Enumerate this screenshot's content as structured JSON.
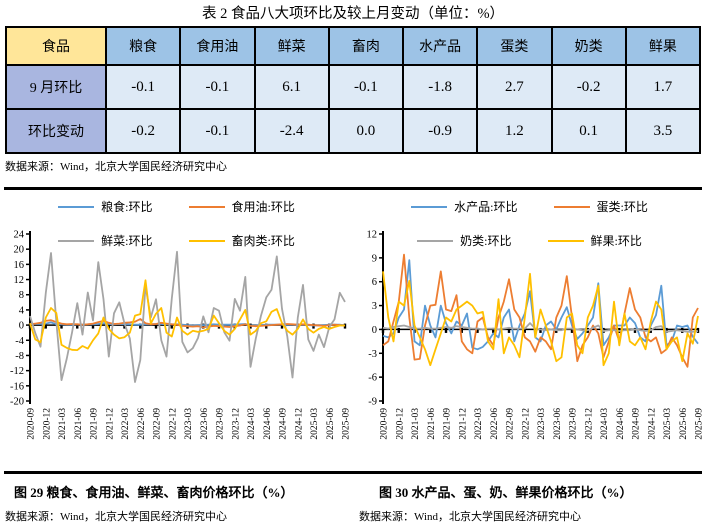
{
  "title": "表 2 食品八大项环比及较上月变动（单位：%）",
  "table": {
    "header": [
      "食品",
      "粮食",
      "食用油",
      "鲜菜",
      "畜肉",
      "水产品",
      "蛋类",
      "奶类",
      "鲜果"
    ],
    "rows": [
      {
        "label": "9 月环比",
        "values": [
          "-0.1",
          "-0.1",
          "6.1",
          "-0.1",
          "-1.8",
          "2.7",
          "-0.2",
          "1.7"
        ]
      },
      {
        "label": "环比变动",
        "values": [
          "-0.2",
          "-0.1",
          "-2.4",
          "0.0",
          "-0.9",
          "1.2",
          "0.1",
          "3.5"
        ]
      }
    ]
  },
  "table_source": "数据来源：Wind，北京大学国民经济研究中心",
  "figures": [
    {
      "caption": "图 29 粮食、食用油、鲜菜、畜肉价格环比（%）",
      "source": "数据来源：Wind，北京大学国民经济研究中心"
    },
    {
      "caption": "图 30 水产品、蛋、奶、鲜果价格环比（%）",
      "source": "数据来源：Wind，北京大学国民经济研究中心"
    }
  ],
  "colors": {
    "blue": "#5B9BD5",
    "orange": "#ED7D31",
    "gray": "#A5A5A5",
    "yellow": "#FFC000",
    "table_header": "#9DC3E6",
    "table_corner": "#FFE699",
    "table_rowlabel": "#A9B6E0",
    "table_cell": "#DEEAF6"
  },
  "chart_data": [
    {
      "type": "line",
      "x": [
        "2020-09",
        "2020-10",
        "2020-11",
        "2020-12",
        "2021-01",
        "2021-02",
        "2021-03",
        "2021-04",
        "2021-05",
        "2021-06",
        "2021-07",
        "2021-08",
        "2021-09",
        "2021-10",
        "2021-11",
        "2021-12",
        "2022-01",
        "2022-02",
        "2022-03",
        "2022-04",
        "2022-05",
        "2022-06",
        "2022-07",
        "2022-08",
        "2022-09",
        "2022-10",
        "2022-11",
        "2022-12",
        "2023-01",
        "2023-02",
        "2023-03",
        "2023-04",
        "2023-05",
        "2023-06",
        "2023-07",
        "2023-08",
        "2023-09",
        "2023-10",
        "2023-11",
        "2023-12",
        "2024-01",
        "2024-02",
        "2024-03",
        "2024-04",
        "2024-05",
        "2024-06",
        "2024-07",
        "2024-08",
        "2024-09",
        "2024-10",
        "2024-11",
        "2024-12",
        "2025-01",
        "2025-02",
        "2025-03",
        "2025-04",
        "2025-05",
        "2025-06",
        "2025-07",
        "2025-08",
        "2025-09"
      ],
      "x_tick_every": 3,
      "ylim": [
        -20,
        24
      ],
      "yticks": [
        24,
        20,
        16,
        12,
        8,
        4,
        0,
        -4,
        -8,
        -12,
        -16,
        -20
      ],
      "legend_position": "top",
      "grid": false,
      "series": [
        {
          "name": "粮食:环比",
          "color": "#5B9BD5",
          "values": [
            0.4,
            0.3,
            0.3,
            0.4,
            0.7,
            0.2,
            0.2,
            0.1,
            0.1,
            0.2,
            0.1,
            0.2,
            0.2,
            0.3,
            0.5,
            0.3,
            0.2,
            0.3,
            0.2,
            0.2,
            0.1,
            0.1,
            0.2,
            0.2,
            0.3,
            0.3,
            0.2,
            0.2,
            0.2,
            0.1,
            0.0,
            -0.1,
            0.0,
            0.0,
            0.1,
            0.2,
            0.1,
            0.1,
            0.1,
            0.1,
            0.2,
            0.3,
            -0.1,
            -0.1,
            0.0,
            0.1,
            0.1,
            0.1,
            0.1,
            0.1,
            0.1,
            0.0,
            0.1,
            0.0,
            -0.1,
            -0.1,
            0.0,
            0.1,
            0.1,
            0.1,
            -0.1
          ]
        },
        {
          "name": "食用油:环比",
          "color": "#ED7D31",
          "values": [
            0.2,
            0.4,
            0.6,
            1.1,
            1.3,
            0.8,
            0.4,
            0.2,
            0.3,
            0.2,
            0.1,
            0.2,
            0.4,
            0.8,
            1.1,
            0.6,
            0.3,
            0.4,
            0.6,
            0.7,
            0.9,
            1.6,
            0.5,
            0.2,
            0.3,
            0.6,
            0.4,
            0.2,
            0.1,
            -0.2,
            -0.3,
            -0.4,
            -0.3,
            -0.6,
            -0.4,
            -0.2,
            -0.3,
            -0.4,
            -0.5,
            -0.3,
            -0.1,
            0.2,
            -0.2,
            -0.3,
            -0.2,
            -0.1,
            0.0,
            0.1,
            0.2,
            0.3,
            0.2,
            0.1,
            0.2,
            0.1,
            0.0,
            -0.1,
            -0.2,
            0.0,
            0.1,
            0.0,
            -0.1
          ]
        },
        {
          "name": "鲜菜:环比",
          "color": "#A5A5A5",
          "values": [
            2.4,
            -2.1,
            -5.7,
            8.5,
            19.0,
            1.0,
            -14.5,
            -8.8,
            -2.0,
            5.8,
            -2.5,
            8.6,
            1.2,
            16.6,
            6.8,
            -8.3,
            3.1,
            6.0,
            0.4,
            -3.5,
            -15.0,
            -9.2,
            10.3,
            2.0,
            6.8,
            -4.0,
            -8.3,
            7.0,
            19.3,
            -4.4,
            -7.2,
            -6.1,
            -3.4,
            2.3,
            -1.9,
            4.5,
            3.8,
            -1.9,
            -4.1,
            6.9,
            3.8,
            12.7,
            -11.0,
            -3.5,
            2.5,
            7.3,
            9.3,
            18.1,
            4.3,
            -3.0,
            -13.8,
            2.0,
            10.6,
            -3.8,
            -6.8,
            -2.5,
            -5.8,
            -0.5,
            1.5,
            8.5,
            6.1
          ]
        },
        {
          "name": "畜肉类:环比",
          "color": "#FFC000",
          "values": [
            0.5,
            -3.8,
            -4.5,
            2.0,
            4.5,
            3.2,
            -5.2,
            -6.0,
            -6.5,
            -6.6,
            -5.5,
            -6.2,
            -4.0,
            -2.2,
            2.0,
            -1.0,
            -2.5,
            -3.5,
            -3.2,
            -2.0,
            2.5,
            2.9,
            11.8,
            0.4,
            3.0,
            4.5,
            -2.0,
            -3.0,
            2.0,
            -1.5,
            -2.5,
            -1.5,
            -1.8,
            -1.5,
            -1.0,
            2.5,
            0.5,
            -1.5,
            -2.5,
            -1.0,
            1.5,
            4.0,
            -2.5,
            -1.5,
            0.5,
            1.0,
            3.5,
            4.2,
            0.5,
            -1.5,
            -2.5,
            -1.0,
            1.5,
            -1.0,
            -2.0,
            -1.0,
            -0.5,
            -1.0,
            -0.5,
            -0.1,
            -0.1
          ]
        }
      ]
    },
    {
      "type": "line",
      "x": [
        "2020-09",
        "2020-10",
        "2020-11",
        "2020-12",
        "2021-01",
        "2021-02",
        "2021-03",
        "2021-04",
        "2021-05",
        "2021-06",
        "2021-07",
        "2021-08",
        "2021-09",
        "2021-10",
        "2021-11",
        "2021-12",
        "2022-01",
        "2022-02",
        "2022-03",
        "2022-04",
        "2022-05",
        "2022-06",
        "2022-07",
        "2022-08",
        "2022-09",
        "2022-10",
        "2022-11",
        "2022-12",
        "2023-01",
        "2023-02",
        "2023-03",
        "2023-04",
        "2023-05",
        "2023-06",
        "2023-07",
        "2023-08",
        "2023-09",
        "2023-10",
        "2023-11",
        "2023-12",
        "2024-01",
        "2024-02",
        "2024-03",
        "2024-04",
        "2024-05",
        "2024-06",
        "2024-07",
        "2024-08",
        "2024-09",
        "2024-10",
        "2024-11",
        "2024-12",
        "2025-01",
        "2025-02",
        "2025-03",
        "2025-04",
        "2025-05",
        "2025-06",
        "2025-07",
        "2025-08",
        "2025-09"
      ],
      "x_tick_every": 3,
      "ylim": [
        -9,
        12
      ],
      "yticks": [
        12,
        9,
        6,
        3,
        0,
        -3,
        -6,
        -9
      ],
      "legend_position": "top",
      "grid": false,
      "series": [
        {
          "name": "水产品:环比",
          "color": "#5B9BD5",
          "values": [
            -0.8,
            -1.0,
            -0.5,
            1.5,
            2.5,
            8.7,
            -1.5,
            -2.0,
            3.0,
            0.5,
            -1.0,
            3.0,
            0.8,
            -0.5,
            1.0,
            0.5,
            2.0,
            -2.3,
            -2.5,
            -2.2,
            -1.5,
            -0.5,
            -1.0,
            1.5,
            2.5,
            -1.5,
            0.5,
            2.0,
            4.8,
            -1.0,
            -1.5,
            0.5,
            1.0,
            0.0,
            1.5,
            2.8,
            0.5,
            -1.2,
            -0.5,
            0.5,
            1.5,
            5.8,
            -2.0,
            -1.0,
            0.5,
            0.5,
            0.5,
            1.5,
            0.8,
            -1.0,
            -1.5,
            0.5,
            1.8,
            5.5,
            -2.0,
            -1.5,
            0.5,
            0.3,
            0.5,
            -0.9,
            -1.8
          ]
        },
        {
          "name": "蛋类:环比",
          "color": "#ED7D31",
          "values": [
            -2.0,
            -1.5,
            1.0,
            3.5,
            9.4,
            1.5,
            -3.8,
            -3.7,
            0.5,
            3.0,
            3.1,
            7.3,
            2.5,
            2.3,
            4.3,
            -1.5,
            -2.5,
            -3.0,
            1.0,
            1.5,
            -1.0,
            -2.0,
            1.5,
            3.5,
            6.3,
            2.5,
            1.5,
            -1.0,
            -1.5,
            -2.8,
            -1.0,
            -1.5,
            -2.5,
            1.5,
            3.0,
            6.7,
            1.5,
            -4.0,
            -2.0,
            -1.0,
            0.5,
            -0.5,
            -3.5,
            -1.5,
            0.5,
            -1.5,
            2.0,
            5.2,
            2.5,
            1.5,
            -1.0,
            -1.5,
            -1.0,
            -3.0,
            -2.5,
            -1.0,
            -2.0,
            -3.5,
            -4.7,
            1.5,
            2.7
          ]
        },
        {
          "name": "奶类:环比",
          "color": "#A5A5A5",
          "values": [
            0.2,
            0.1,
            0.3,
            0.4,
            0.5,
            0.3,
            0.1,
            0.1,
            0.2,
            0.1,
            0.1,
            0.2,
            0.3,
            0.2,
            0.4,
            0.3,
            0.2,
            0.1,
            0.1,
            0.0,
            0.1,
            0.1,
            0.0,
            0.1,
            0.2,
            0.1,
            0.1,
            0.1,
            0.8,
            0.1,
            0.0,
            -0.1,
            0.0,
            -0.1,
            -0.1,
            0.1,
            0.1,
            0.0,
            -0.1,
            -0.1,
            0.2,
            0.5,
            -0.2,
            -0.1,
            -0.1,
            -0.2,
            -0.1,
            -0.1,
            0.0,
            -0.1,
            -0.2,
            -0.1,
            0.3,
            0.4,
            -0.3,
            -0.2,
            -0.1,
            -0.2,
            -0.3,
            -0.3,
            -0.2
          ]
        },
        {
          "name": "鲜果:环比",
          "color": "#FFC000",
          "values": [
            7.3,
            1.5,
            -1.5,
            3.5,
            3.0,
            6.1,
            0.5,
            -1.0,
            -2.5,
            -4.5,
            -2.5,
            -0.5,
            1.5,
            1.0,
            2.5,
            3.0,
            3.5,
            3.0,
            2.0,
            2.2,
            -1.5,
            -2.5,
            3.8,
            -3.0,
            -1.0,
            -2.0,
            -3.5,
            1.5,
            7.0,
            -1.0,
            2.5,
            0.5,
            -1.5,
            -4.0,
            -3.5,
            1.5,
            2.0,
            -2.0,
            -3.0,
            1.5,
            3.0,
            5.5,
            -4.5,
            -3.0,
            3.5,
            -2.0,
            2.0,
            -1.5,
            -2.0,
            -1.0,
            -2.5,
            1.0,
            3.5,
            2.5,
            -2.5,
            -1.5,
            -1.0,
            -4.0,
            -0.5,
            -1.8,
            1.7
          ]
        }
      ]
    }
  ]
}
